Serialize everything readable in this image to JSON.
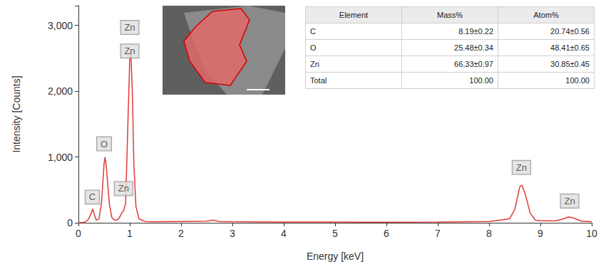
{
  "chart_data": {
    "type": "line",
    "x_label": "Energy [keV]",
    "y_label": "Intensity [Counts]",
    "color": "#e03a3a",
    "grid": false,
    "xlim": [
      0,
      10
    ],
    "xticks": [
      0,
      1,
      2,
      3,
      4,
      5,
      6,
      7,
      8,
      9,
      10
    ],
    "ylim": [
      0,
      3300
    ],
    "yticks": [
      0,
      {
        "value": 1000,
        "label": "1,000"
      },
      {
        "value": 2000,
        "label": "2,000"
      },
      {
        "value": 3000,
        "label": "3,000"
      }
    ],
    "x": [
      0,
      0.1,
      0.15,
      0.2,
      0.25,
      0.28,
      0.31,
      0.35,
      0.4,
      0.45,
      0.5,
      0.52,
      0.55,
      0.6,
      0.65,
      0.7,
      0.75,
      0.8,
      0.85,
      0.88,
      0.92,
      0.96,
      1.0,
      1.02,
      1.05,
      1.08,
      1.12,
      1.18,
      1.3,
      1.5,
      2.0,
      2.5,
      2.62,
      2.75,
      3.0,
      4.0,
      5.0,
      6.0,
      7.0,
      8.0,
      8.4,
      8.5,
      8.6,
      8.64,
      8.7,
      8.8,
      8.9,
      9.0,
      9.3,
      9.45,
      9.55,
      9.65,
      9.8,
      10.0
    ],
    "values": [
      0,
      5,
      20,
      60,
      150,
      210,
      120,
      40,
      60,
      300,
      900,
      1000,
      800,
      300,
      80,
      40,
      40,
      80,
      160,
      180,
      300,
      1400,
      2500,
      2600,
      2000,
      900,
      250,
      60,
      20,
      15,
      20,
      25,
      40,
      20,
      15,
      12,
      10,
      8,
      10,
      20,
      60,
      200,
      550,
      570,
      450,
      150,
      40,
      30,
      30,
      60,
      90,
      70,
      25,
      15
    ],
    "annotations": [
      {
        "text": "C",
        "x": 0.27,
        "y": 390
      },
      {
        "text": "O",
        "x": 0.5,
        "y": 1200
      },
      {
        "text": "Zn",
        "x": 0.88,
        "y": 520
      },
      {
        "text": "Zn",
        "x": 1.0,
        "y": 2970
      },
      {
        "text": "Zn",
        "x": 1.0,
        "y": 2610
      },
      {
        "text": "Zn",
        "x": 8.63,
        "y": 840
      },
      {
        "text": "Zn",
        "x": 9.57,
        "y": 330
      }
    ],
    "table": {
      "columns": [
        "Element",
        "Mass%",
        "Atom%"
      ],
      "rows": [
        [
          "C",
          "8.19±0.22",
          "20.74±0.56"
        ],
        [
          "O",
          "25.48±0.34",
          "48.41±0.65"
        ],
        [
          "Zn",
          "66.33±0.97",
          "30.85±0.45"
        ],
        [
          "Total",
          "100.00",
          "100.00"
        ]
      ]
    }
  }
}
